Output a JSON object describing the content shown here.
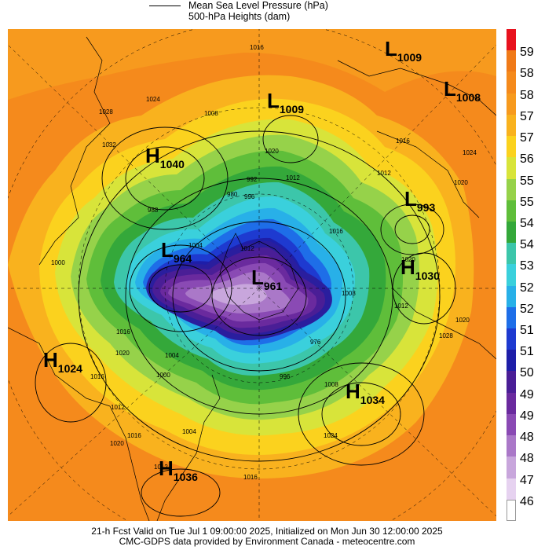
{
  "legend": {
    "line1": "Mean Sea Level Pressure (hPa)",
    "line2": "500-hPa Heights (dam)"
  },
  "colorbar": {
    "ticks": [
      "594",
      "588",
      "582",
      "576",
      "570",
      "564",
      "558",
      "552",
      "546",
      "540",
      "534",
      "528",
      "522",
      "516",
      "510",
      "504",
      "498",
      "492",
      "486",
      "480",
      "474",
      "468"
    ],
    "colors": [
      "#e8121e",
      "#f07a18",
      "#f58a1c",
      "#f79a1e",
      "#f9b21e",
      "#fbd21e",
      "#d8e43a",
      "#96d24a",
      "#5fbe3a",
      "#34a83a",
      "#3cc6aa",
      "#3ad0dc",
      "#28b0e8",
      "#1e6ee8",
      "#1e3ad0",
      "#1e1ea8",
      "#4a1e96",
      "#6a2a9e",
      "#8a4ab4",
      "#aa78c8",
      "#c8a6dc",
      "#e6d2f0",
      "#ffffff"
    ]
  },
  "systems": [
    {
      "type": "L",
      "value": "1009"
    },
    {
      "type": "L",
      "value": "1008"
    },
    {
      "type": "L",
      "value": "1009"
    },
    {
      "type": "H",
      "value": "1040"
    },
    {
      "type": "L",
      "value": "993"
    },
    {
      "type": "L",
      "value": "964"
    },
    {
      "type": "H",
      "value": "1030"
    },
    {
      "type": "L",
      "value": "961"
    },
    {
      "type": "H",
      "value": "1024"
    },
    {
      "type": "H",
      "value": "1034"
    },
    {
      "type": "H",
      "value": "1036"
    }
  ],
  "isobar_labels": [
    "1016",
    "1024",
    "1028",
    "1032",
    "1008",
    "1020",
    "1012",
    "992",
    "996",
    "988",
    "1004",
    "1000",
    "1016",
    "1020",
    "1024",
    "1012",
    "1016",
    "1020",
    "1008",
    "1012",
    "1016",
    "1020",
    "1004",
    "1016",
    "1000",
    "1012",
    "1016",
    "1020",
    "1012",
    "1004",
    "1008",
    "1024",
    "1016",
    "1020",
    "1020",
    "1028",
    "996",
    "980",
    "1012",
    "976"
  ],
  "footer": {
    "line1": "21-h Fcst Valid on Tue Jul  1 09:00:00 2025, Initialized on Mon Jun 30 12:00:00 2025",
    "line2": "CMC-GDPS data provided by Environment Canada - meteocentre.com"
  }
}
